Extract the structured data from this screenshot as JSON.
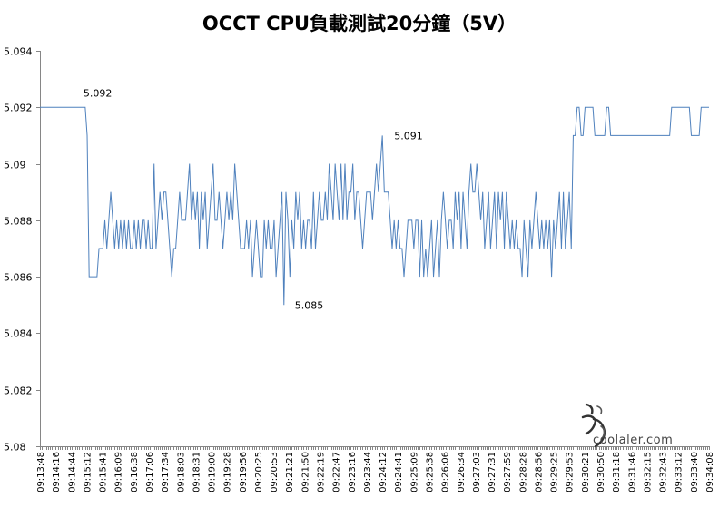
{
  "chart_data": {
    "type": "line",
    "title": "OCCT CPU負載測試20分鐘（5V）",
    "xlabel": "",
    "ylabel": "",
    "ylim": [
      5.08,
      5.094
    ],
    "yticks": [
      "5.094",
      "5.092",
      "5.09",
      "5.088",
      "5.086",
      "5.084",
      "5.082",
      "5.08"
    ],
    "ytick_values": [
      5.094,
      5.092,
      5.09,
      5.088,
      5.086,
      5.084,
      5.082,
      5.08
    ],
    "grid": false,
    "legend": "none",
    "line_color": "#4f81bd",
    "x_tick_labels": [
      "09:13:48",
      "09:14:16",
      "09:14:44",
      "09:15:12",
      "09:15:41",
      "09:16:09",
      "09:16:38",
      "09:17:06",
      "09:17:34",
      "09:18:03",
      "09:18:31",
      "09:19:00",
      "09:19:28",
      "09:19:56",
      "09:20:25",
      "09:20:53",
      "09:21:21",
      "09:21:50",
      "09:22:19",
      "09:22:47",
      "09:23:16",
      "09:23:44",
      "09:24:12",
      "09:24:41",
      "09:25:09",
      "09:25:38",
      "09:26:06",
      "09:26:34",
      "09:27:03",
      "09:27:31",
      "09:27:59",
      "09:28:28",
      "09:28:56",
      "09:29:25",
      "09:29:53",
      "09:30:21",
      "09:30:50",
      "09:31:18",
      "09:31:46",
      "09:32:15",
      "09:32:43",
      "09:33:12",
      "09:33:40",
      "09:34:08"
    ],
    "annotations": [
      {
        "label": "5.092",
        "index": 23,
        "value": 5.092
      },
      {
        "label": "5.085",
        "index": 124,
        "value": 5.085
      },
      {
        "label": "5.091",
        "index": 175,
        "value": 5.091
      }
    ],
    "values": [
      5.092,
      5.092,
      5.092,
      5.092,
      5.092,
      5.092,
      5.092,
      5.092,
      5.092,
      5.092,
      5.092,
      5.092,
      5.092,
      5.092,
      5.092,
      5.092,
      5.092,
      5.092,
      5.092,
      5.092,
      5.092,
      5.092,
      5.092,
      5.092,
      5.091,
      5.086,
      5.086,
      5.086,
      5.086,
      5.086,
      5.087,
      5.087,
      5.087,
      5.088,
      5.087,
      5.088,
      5.089,
      5.088,
      5.087,
      5.088,
      5.087,
      5.088,
      5.087,
      5.088,
      5.087,
      5.088,
      5.087,
      5.087,
      5.088,
      5.087,
      5.088,
      5.087,
      5.088,
      5.088,
      5.087,
      5.088,
      5.087,
      5.087,
      5.09,
      5.087,
      5.088,
      5.089,
      5.088,
      5.089,
      5.089,
      5.088,
      5.087,
      5.086,
      5.087,
      5.087,
      5.088,
      5.089,
      5.088,
      5.088,
      5.088,
      5.089,
      5.09,
      5.088,
      5.089,
      5.088,
      5.089,
      5.087,
      5.089,
      5.088,
      5.089,
      5.087,
      5.088,
      5.089,
      5.09,
      5.088,
      5.088,
      5.089,
      5.088,
      5.087,
      5.088,
      5.089,
      5.088,
      5.089,
      5.088,
      5.09,
      5.089,
      5.088,
      5.087,
      5.087,
      5.087,
      5.088,
      5.087,
      5.088,
      5.086,
      5.087,
      5.088,
      5.087,
      5.086,
      5.086,
      5.088,
      5.087,
      5.088,
      5.087,
      5.087,
      5.088,
      5.086,
      5.087,
      5.088,
      5.089,
      5.085,
      5.089,
      5.088,
      5.086,
      5.088,
      5.087,
      5.089,
      5.088,
      5.089,
      5.087,
      5.088,
      5.087,
      5.088,
      5.088,
      5.087,
      5.089,
      5.087,
      5.088,
      5.089,
      5.088,
      5.088,
      5.089,
      5.088,
      5.09,
      5.089,
      5.088,
      5.09,
      5.089,
      5.088,
      5.09,
      5.088,
      5.09,
      5.088,
      5.089,
      5.089,
      5.09,
      5.088,
      5.089,
      5.089,
      5.088,
      5.087,
      5.088,
      5.089,
      5.089,
      5.089,
      5.088,
      5.089,
      5.09,
      5.089,
      5.09,
      5.091,
      5.089,
      5.089,
      5.089,
      5.088,
      5.087,
      5.088,
      5.087,
      5.088,
      5.087,
      5.087,
      5.086,
      5.087,
      5.088,
      5.088,
      5.088,
      5.087,
      5.088,
      5.088,
      5.086,
      5.088,
      5.086,
      5.087,
      5.086,
      5.087,
      5.088,
      5.086,
      5.087,
      5.088,
      5.086,
      5.088,
      5.089,
      5.088,
      5.087,
      5.088,
      5.088,
      5.087,
      5.089,
      5.088,
      5.089,
      5.087,
      5.089,
      5.088,
      5.087,
      5.089,
      5.09,
      5.089,
      5.089,
      5.09,
      5.089,
      5.088,
      5.089,
      5.087,
      5.088,
      5.089,
      5.087,
      5.088,
      5.089,
      5.087,
      5.089,
      5.088,
      5.089,
      5.087,
      5.089,
      5.088,
      5.087,
      5.088,
      5.087,
      5.088,
      5.087,
      5.087,
      5.086,
      5.088,
      5.087,
      5.086,
      5.088,
      5.087,
      5.088,
      5.089,
      5.088,
      5.087,
      5.088,
      5.087,
      5.088,
      5.087,
      5.088,
      5.086,
      5.088,
      5.087,
      5.088,
      5.089,
      5.087,
      5.089,
      5.087,
      5.088,
      5.089,
      5.087,
      5.091,
      5.091,
      5.092,
      5.092,
      5.091,
      5.091,
      5.092,
      5.092,
      5.092,
      5.092,
      5.092,
      5.091,
      5.091,
      5.091,
      5.091,
      5.091,
      5.091,
      5.092,
      5.092,
      5.091,
      5.091,
      5.091,
      5.091,
      5.091,
      5.091,
      5.091,
      5.091,
      5.091,
      5.091,
      5.091,
      5.091,
      5.091,
      5.091,
      5.091,
      5.091,
      5.091,
      5.091,
      5.091,
      5.091,
      5.091,
      5.091,
      5.091,
      5.091,
      5.091,
      5.091,
      5.091,
      5.091,
      5.091,
      5.091,
      5.091,
      5.092,
      5.092,
      5.092,
      5.092,
      5.092,
      5.092,
      5.092,
      5.092,
      5.092,
      5.092,
      5.091,
      5.091,
      5.091,
      5.091,
      5.091,
      5.092,
      5.092,
      5.092,
      5.092,
      5.092
    ]
  },
  "watermark": {
    "text": "coolaler.com"
  }
}
